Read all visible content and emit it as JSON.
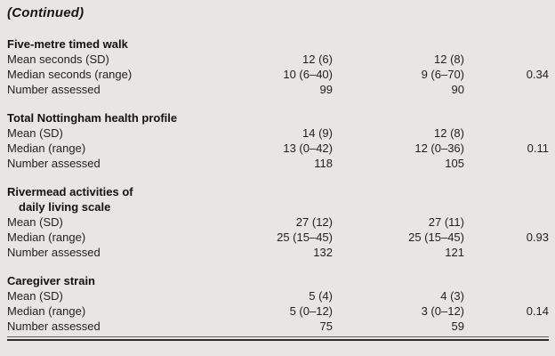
{
  "header": {
    "continued_label": "(Continued)"
  },
  "table": {
    "sections": [
      {
        "heading_lines": [
          "Five-metre timed walk"
        ],
        "rows": [
          {
            "label": "Mean seconds (SD)",
            "col1": "12 (6)",
            "col2": "12 (8)",
            "p": ""
          },
          {
            "label": "Median seconds (range)",
            "col1": "10 (6–40)",
            "col2": "9 (6–70)",
            "p": "0.34"
          },
          {
            "label": "Number assessed",
            "col1": "99",
            "col2": "90",
            "p": ""
          }
        ]
      },
      {
        "heading_lines": [
          "Total Nottingham health profile"
        ],
        "rows": [
          {
            "label": "Mean (SD)",
            "col1": "14 (9)",
            "col2": "12 (8)",
            "p": ""
          },
          {
            "label": "Median (range)",
            "col1": "13 (0–42)",
            "col2": "12 (0–36)",
            "p": "0.11"
          },
          {
            "label": "Number assessed",
            "col1": "118",
            "col2": "105",
            "p": ""
          }
        ]
      },
      {
        "heading_lines": [
          "Rivermead activities of",
          "daily living scale"
        ],
        "rows": [
          {
            "label": "Mean (SD)",
            "col1": "27 (12)",
            "col2": "27 (11)",
            "p": ""
          },
          {
            "label": "Median (range)",
            "col1": "25 (15–45)",
            "col2": "25 (15–45)",
            "p": "0.93"
          },
          {
            "label": "Number assessed",
            "col1": "132",
            "col2": "121",
            "p": ""
          }
        ]
      },
      {
        "heading_lines": [
          "Caregiver strain"
        ],
        "rows": [
          {
            "label": "Mean (SD)",
            "col1": "5 (4)",
            "col2": "4 (3)",
            "p": ""
          },
          {
            "label": "Median (range)",
            "col1": "5 (0–12)",
            "col2": "3 (0–12)",
            "p": "0.14"
          },
          {
            "label": "Number assessed",
            "col1": "75",
            "col2": "59",
            "p": ""
          }
        ]
      }
    ]
  },
  "colors": {
    "background": "#e7e6e4",
    "text": "#1f1f1f",
    "heading_text": "#111111",
    "rule_thin": "#5e5e5a",
    "rule_thick": "#2c2c2c"
  }
}
